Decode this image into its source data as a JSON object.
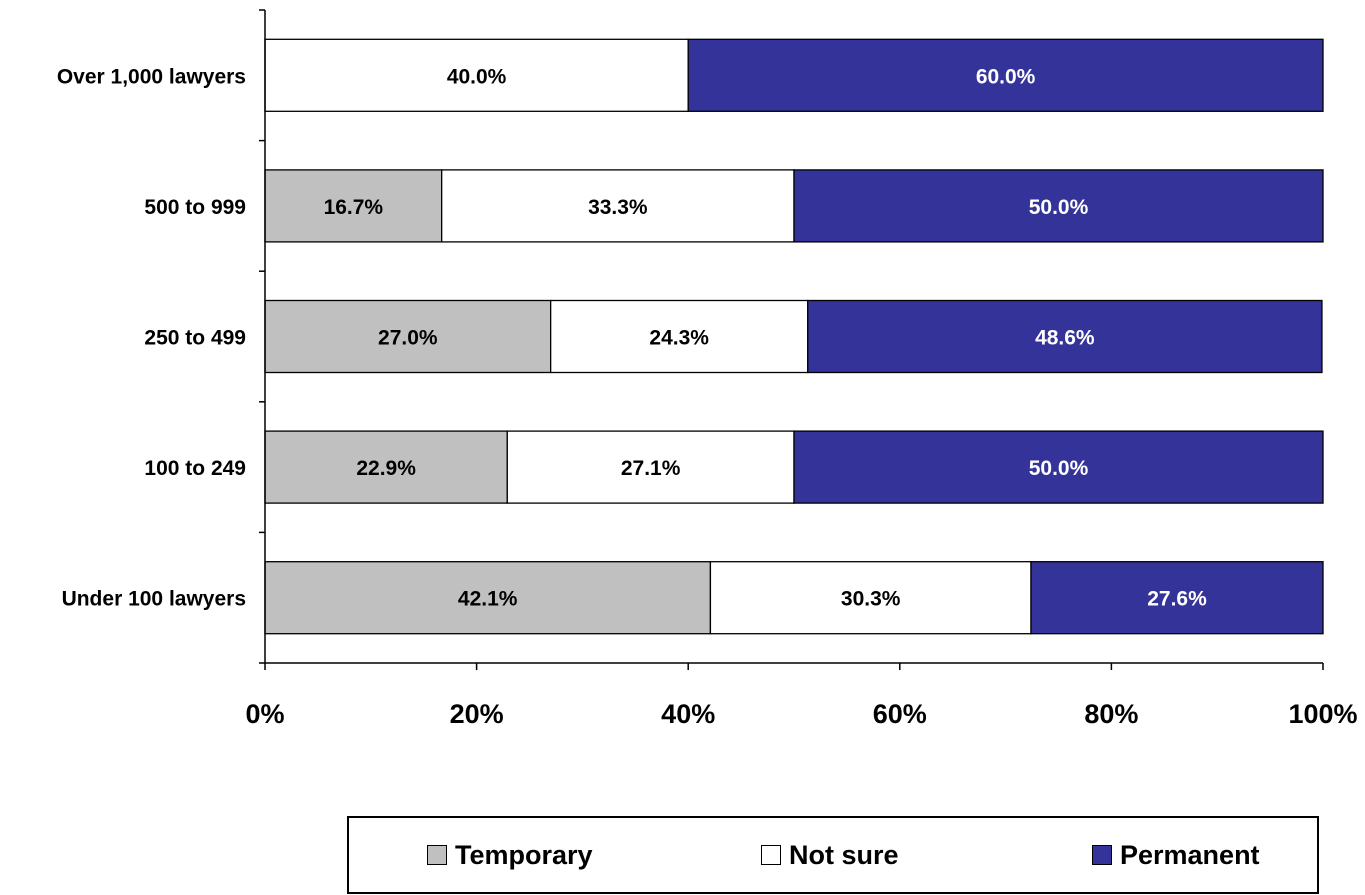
{
  "chart_data": {
    "type": "bar",
    "orientation": "horizontal",
    "stacked": true,
    "categories": [
      "Over 1,000 lawyers",
      "500 to 999",
      "250 to 499",
      "100 to 249",
      "Under 100 lawyers"
    ],
    "series": [
      {
        "name": "Temporary",
        "color": "#c0c0c0",
        "label_color": "#000000",
        "values": [
          0,
          16.7,
          27.0,
          22.9,
          42.1
        ],
        "labels": [
          "",
          "16.7%",
          "27.0%",
          "22.9%",
          "42.1%"
        ]
      },
      {
        "name": "Not sure",
        "color": "#ffffff",
        "label_color": "#000000",
        "values": [
          40.0,
          33.3,
          24.3,
          27.1,
          30.3
        ],
        "labels": [
          "40.0%",
          "33.3%",
          "24.3%",
          "27.1%",
          "30.3%"
        ]
      },
      {
        "name": "Permanent",
        "color": "#333399",
        "label_color": "#ffffff",
        "values": [
          60.0,
          50.0,
          48.6,
          50.0,
          27.6
        ],
        "labels": [
          "60.0%",
          "50.0%",
          "48.6%",
          "50.0%",
          "27.6%"
        ]
      }
    ],
    "xlim": [
      0,
      100
    ],
    "x_ticks": [
      0,
      20,
      40,
      60,
      80,
      100
    ],
    "x_tick_labels": [
      "0%",
      "20%",
      "40%",
      "60%",
      "80%",
      "100%"
    ],
    "grid": false,
    "legend_position": "bottom"
  }
}
